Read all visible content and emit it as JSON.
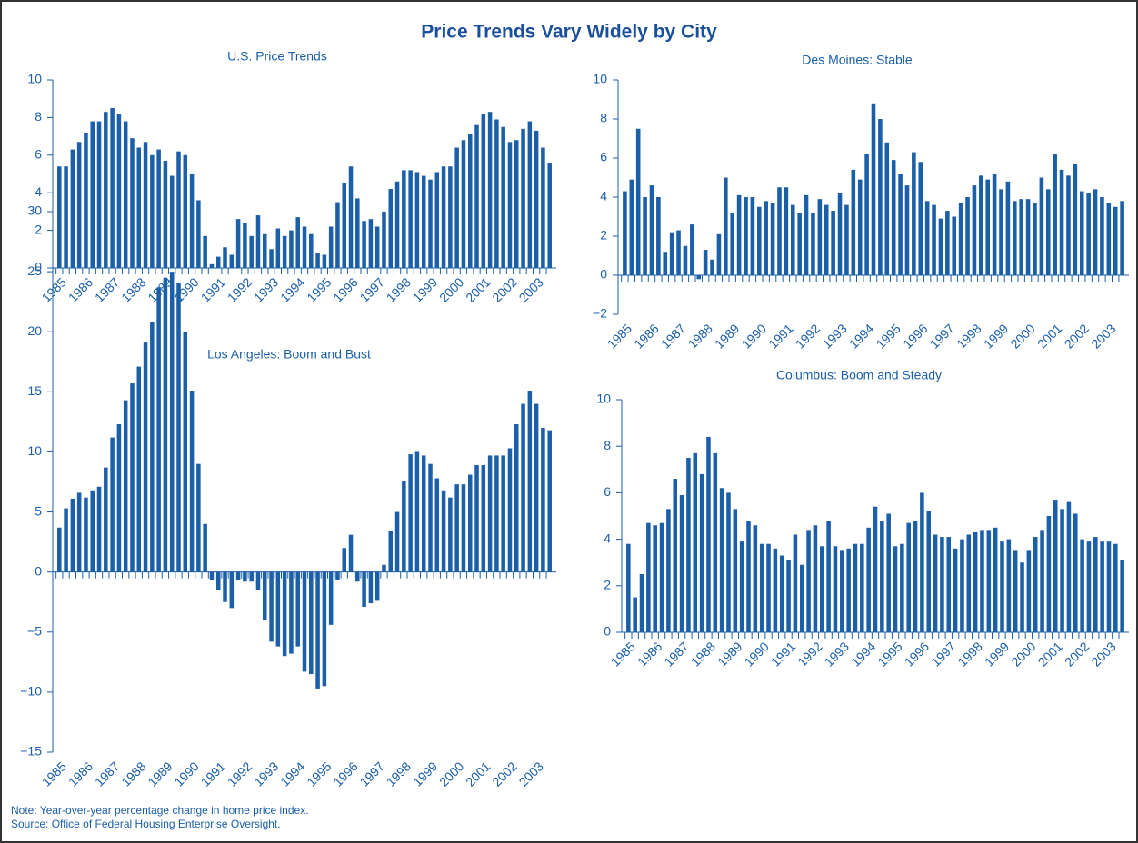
{
  "title": "Price Trends Vary Widely by City",
  "notes": [
    "Note: Year-over-year percentage change in home price index.",
    "Source: Office of Federal Housing Enterprise Oversight."
  ],
  "chart_data": [
    {
      "type": "bar",
      "title": "U.S. Price Trends",
      "color": "#1b5fa8",
      "categories": [
        "1985",
        null,
        null,
        null,
        "1986",
        null,
        null,
        null,
        "1987",
        null,
        null,
        null,
        "1988",
        null,
        null,
        null,
        "1989",
        null,
        null,
        null,
        "1990",
        null,
        null,
        null,
        "1991",
        null,
        null,
        null,
        "1992",
        null,
        null,
        null,
        "1993",
        null,
        null,
        null,
        "1994",
        null,
        null,
        null,
        "1995",
        null,
        null,
        null,
        "1996",
        null,
        null,
        null,
        "1997",
        null,
        null,
        null,
        "1998",
        null,
        null,
        null,
        "1999",
        null,
        null,
        null,
        "2000",
        null,
        null,
        null,
        "2001",
        null,
        null,
        null,
        "2002",
        null,
        null,
        null,
        "2003",
        null,
        null
      ],
      "values": [
        5.4,
        5.4,
        6.3,
        6.7,
        7.2,
        7.8,
        7.8,
        8.3,
        8.5,
        8.2,
        7.8,
        6.9,
        6.4,
        6.7,
        6.0,
        6.3,
        5.7,
        4.9,
        6.2,
        6.0,
        5.0,
        3.6,
        1.7,
        0.2,
        0.6,
        1.1,
        0.7,
        2.6,
        2.4,
        1.7,
        2.8,
        1.8,
        1.0,
        2.1,
        1.7,
        2.0,
        2.7,
        2.2,
        1.8,
        0.8,
        0.7,
        2.2,
        3.5,
        4.5,
        5.4,
        3.7,
        2.5,
        2.6,
        2.2,
        3.0,
        4.2,
        4.6,
        5.2,
        5.2,
        5.1,
        4.9,
        4.7,
        5.1,
        5.4,
        5.4,
        6.4,
        6.8,
        7.1,
        7.6,
        8.2,
        8.3,
        7.9,
        7.5,
        6.7,
        6.8,
        7.4,
        7.8,
        7.3,
        6.4,
        5.6
      ],
      "ylim": [
        0,
        10
      ],
      "yticks": [
        0,
        2,
        4,
        6,
        8,
        10
      ]
    },
    {
      "type": "bar",
      "title": "Des Moines: Stable",
      "color": "#1b5fa8",
      "categories": [
        "1985",
        null,
        null,
        null,
        "1986",
        null,
        null,
        null,
        "1987",
        null,
        null,
        null,
        "1988",
        null,
        null,
        null,
        "1989",
        null,
        null,
        null,
        "1990",
        null,
        null,
        null,
        "1991",
        null,
        null,
        null,
        "1992",
        null,
        null,
        null,
        "1993",
        null,
        null,
        null,
        "1994",
        null,
        null,
        null,
        "1995",
        null,
        null,
        null,
        "1996",
        null,
        null,
        null,
        "1997",
        null,
        null,
        null,
        "1998",
        null,
        null,
        null,
        "1999",
        null,
        null,
        null,
        "2000",
        null,
        null,
        null,
        "2001",
        null,
        null,
        null,
        "2002",
        null,
        null,
        null,
        "2003",
        null,
        null
      ],
      "values": [
        4.3,
        4.9,
        7.5,
        4.0,
        4.6,
        4.0,
        1.2,
        2.2,
        2.3,
        1.5,
        2.6,
        -0.2,
        1.3,
        0.8,
        2.1,
        5.0,
        3.2,
        4.1,
        4.0,
        4.0,
        3.5,
        3.8,
        3.7,
        4.5,
        4.5,
        3.6,
        3.2,
        4.1,
        3.2,
        3.9,
        3.6,
        3.3,
        4.2,
        3.6,
        5.4,
        4.9,
        6.2,
        8.8,
        8.0,
        6.8,
        5.9,
        5.2,
        4.6,
        6.3,
        5.8,
        3.8,
        3.6,
        2.9,
        3.3,
        3.0,
        3.7,
        4.0,
        4.6,
        5.1,
        4.9,
        5.2,
        4.4,
        4.8,
        3.8,
        3.9,
        3.9,
        3.7,
        5.0,
        4.4,
        6.2,
        5.4,
        5.1,
        5.7,
        4.3,
        4.2,
        4.4,
        4.0,
        3.7,
        3.5,
        3.8
      ],
      "ylim": [
        -2,
        10
      ],
      "yticks": [
        {
          "value": -2,
          "label": "−2"
        },
        0,
        2,
        4,
        6,
        8,
        10
      ]
    },
    {
      "type": "bar",
      "title": "Los Angeles: Boom and Bust",
      "color": "#1b5fa8",
      "categories": [
        "1985",
        null,
        null,
        null,
        "1986",
        null,
        null,
        null,
        "1987",
        null,
        null,
        null,
        "1988",
        null,
        null,
        null,
        "1989",
        null,
        null,
        null,
        "1990",
        null,
        null,
        null,
        "1991",
        null,
        null,
        null,
        "1992",
        null,
        null,
        null,
        "1993",
        null,
        null,
        null,
        "1994",
        null,
        null,
        null,
        "1995",
        null,
        null,
        null,
        "1996",
        null,
        null,
        null,
        "1997",
        null,
        null,
        null,
        "1998",
        null,
        null,
        null,
        "1999",
        null,
        null,
        null,
        "2000",
        null,
        null,
        null,
        "2001",
        null,
        null,
        null,
        "2002",
        null,
        null,
        null,
        "2003",
        null,
        null
      ],
      "values": [
        3.7,
        5.3,
        6.1,
        6.6,
        6.2,
        6.8,
        7.1,
        8.7,
        11.2,
        12.3,
        14.3,
        15.7,
        17.1,
        19.1,
        20.8,
        23.7,
        24.5,
        25.0,
        24.1,
        20.0,
        15.1,
        9.0,
        4.0,
        -0.7,
        -1.5,
        -2.5,
        -3.0,
        -0.7,
        -0.8,
        -0.8,
        -1.5,
        -4.0,
        -5.8,
        -6.2,
        -7.0,
        -6.8,
        -6.2,
        -8.3,
        -8.5,
        -9.7,
        -9.5,
        -4.4,
        -0.7,
        2.0,
        3.1,
        -0.8,
        -2.9,
        -2.6,
        -2.4,
        0.6,
        3.4,
        5.0,
        7.6,
        9.8,
        10.0,
        9.7,
        9.0,
        7.8,
        6.8,
        6.2,
        7.3,
        7.3,
        8.1,
        8.9,
        8.9,
        9.7,
        9.7,
        9.7,
        10.3,
        12.3,
        14.0,
        15.1,
        14.0,
        12.0,
        11.8
      ],
      "ylim": [
        -15,
        30
      ],
      "yticks": [
        {
          "value": -15,
          "label": "−15"
        },
        {
          "value": -10,
          "label": "−10"
        },
        {
          "value": -5,
          "label": "−5"
        },
        0,
        5,
        10,
        15,
        20,
        25,
        30
      ]
    },
    {
      "type": "bar",
      "title": "Columbus: Boom and Steady",
      "color": "#1b5fa8",
      "categories": [
        "1985",
        null,
        null,
        null,
        "1986",
        null,
        null,
        null,
        "1987",
        null,
        null,
        null,
        "1988",
        null,
        null,
        null,
        "1989",
        null,
        null,
        null,
        "1990",
        null,
        null,
        null,
        "1991",
        null,
        null,
        null,
        "1992",
        null,
        null,
        null,
        "1993",
        null,
        null,
        null,
        "1994",
        null,
        null,
        null,
        "1995",
        null,
        null,
        null,
        "1996",
        null,
        null,
        null,
        "1997",
        null,
        null,
        null,
        "1998",
        null,
        null,
        null,
        "1999",
        null,
        null,
        null,
        "2000",
        null,
        null,
        null,
        "2001",
        null,
        null,
        null,
        "2002",
        null,
        null,
        null,
        "2003",
        null,
        null
      ],
      "values": [
        3.8,
        1.5,
        2.5,
        4.7,
        4.6,
        4.7,
        5.3,
        6.6,
        5.9,
        7.5,
        7.7,
        6.8,
        8.4,
        7.7,
        6.2,
        6.0,
        5.3,
        3.9,
        4.8,
        4.6,
        3.8,
        3.8,
        3.6,
        3.3,
        3.1,
        4.2,
        2.9,
        4.4,
        4.6,
        3.7,
        4.8,
        3.7,
        3.5,
        3.6,
        3.8,
        3.8,
        4.5,
        5.4,
        4.8,
        5.1,
        3.7,
        3.8,
        4.7,
        4.8,
        6.0,
        5.2,
        4.2,
        4.1,
        4.1,
        3.6,
        4.0,
        4.2,
        4.3,
        4.4,
        4.4,
        4.5,
        3.9,
        4.0,
        3.5,
        3.0,
        3.5,
        4.1,
        4.4,
        5.0,
        5.7,
        5.3,
        5.6,
        5.1,
        4.0,
        3.9,
        4.1,
        3.9,
        3.9,
        3.8,
        3.1
      ],
      "ylim": [
        0,
        10
      ],
      "yticks": [
        0,
        2,
        4,
        6,
        8,
        10
      ]
    }
  ]
}
